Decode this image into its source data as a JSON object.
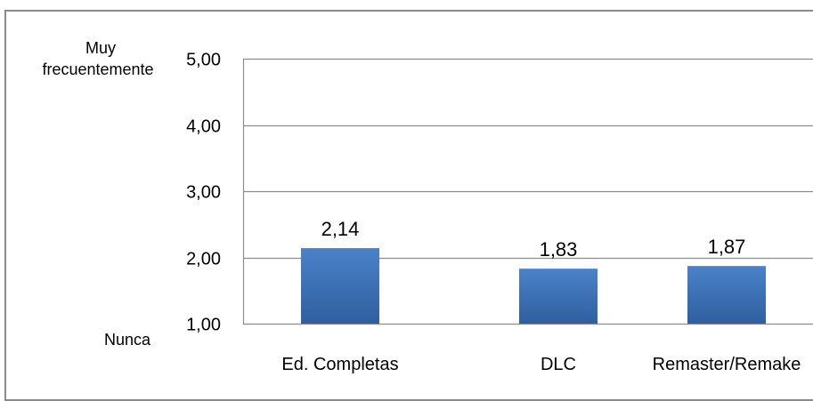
{
  "chart_data": {
    "type": "bar",
    "categories": [
      "Ed. Completas",
      "DLC",
      "Remaster/Remake"
    ],
    "values": [
      2.14,
      1.83,
      1.87
    ],
    "value_labels": [
      "2,14",
      "1,83",
      "1,87"
    ],
    "ylim": [
      1,
      5
    ],
    "yticks": [
      1,
      2,
      3,
      4,
      5
    ],
    "ytick_labels": [
      "1,00",
      "2,00",
      "3,00",
      "4,00",
      "5,00"
    ],
    "annotations": {
      "top_line1": "Muy",
      "top_line2": "frecuentemente",
      "bottom": "Nunca"
    },
    "grid": true,
    "bar_color": "#3f73b8",
    "bar_color_dark": "#2f5d99",
    "grid_color": "#8c8c8c"
  }
}
